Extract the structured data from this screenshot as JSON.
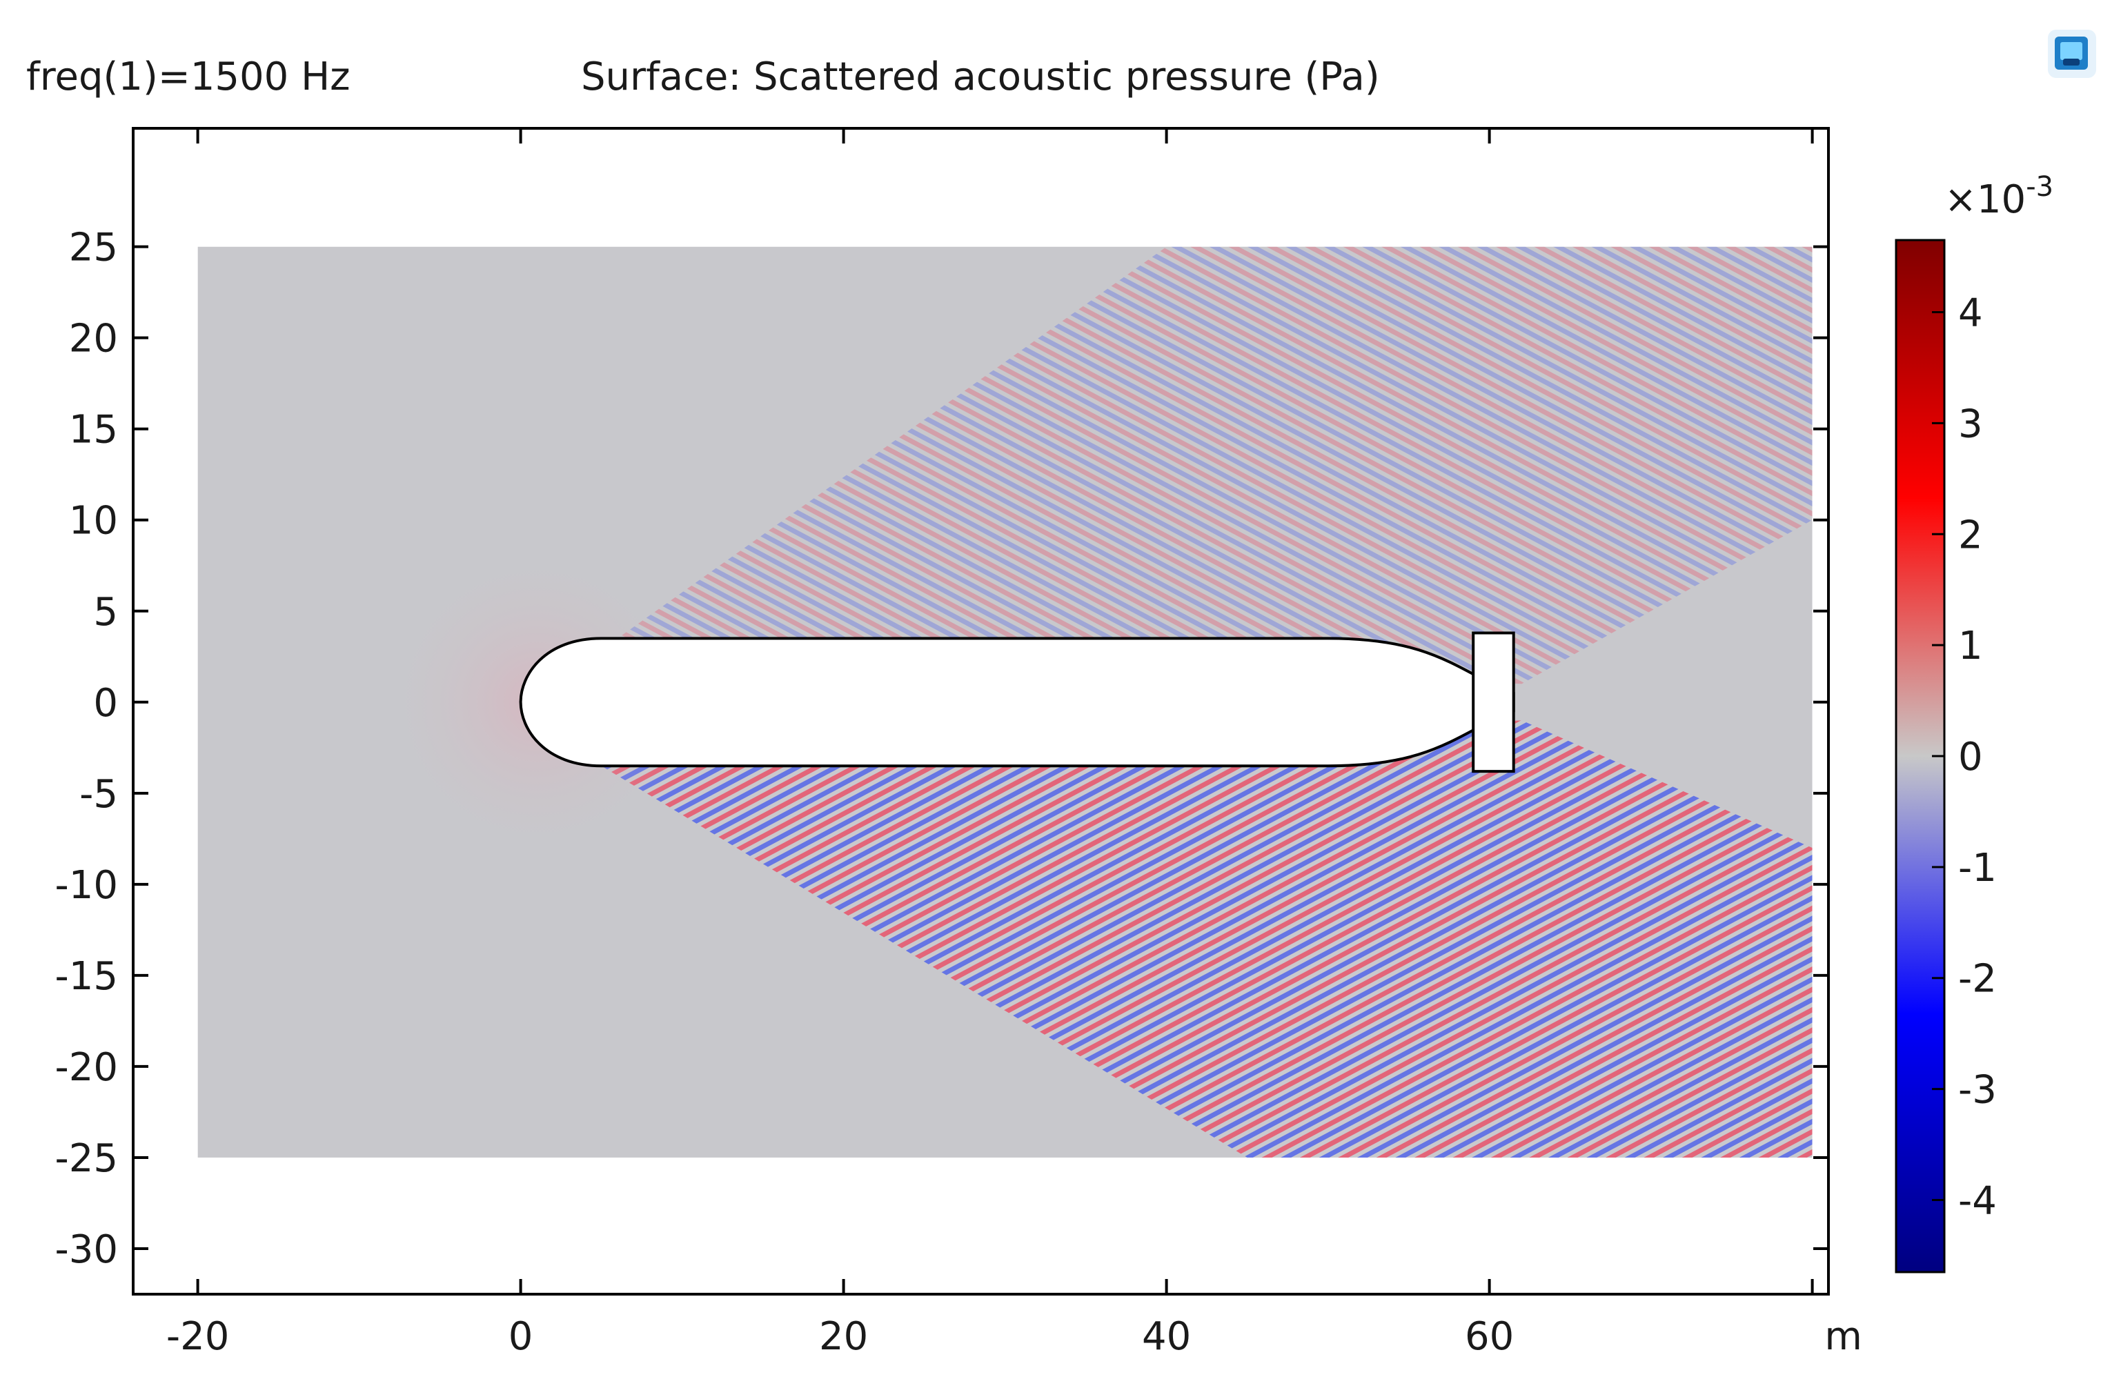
{
  "header": {
    "frequency_label": "freq(1)=1500 Hz",
    "plot_title": "Surface: Scattered acoustic pressure (Pa)"
  },
  "toolbar": {
    "icon": "comsol-logo-icon"
  },
  "chart_data": {
    "type": "heatmap",
    "title": "Surface: Scattered acoustic pressure (Pa)",
    "parameter_label": "freq(1)=1500 Hz",
    "xlabel": "",
    "ylabel": "",
    "x_unit": "m",
    "xlim": [
      -24,
      81
    ],
    "ylim": [
      -32.5,
      31.5
    ],
    "xticks": [
      -20,
      0,
      20,
      40,
      60,
      80
    ],
    "xtick_labels": [
      "-20",
      "0",
      "20",
      "40",
      "60",
      ""
    ],
    "yticks": [
      25,
      20,
      15,
      10,
      5,
      0,
      -5,
      -10,
      -15,
      -20,
      -25,
      -30
    ],
    "ytick_labels": [
      "25",
      "20",
      "15",
      "10",
      "5",
      "0",
      "-5",
      "-10",
      "-15",
      "-20",
      "-25",
      "-30"
    ],
    "domain": {
      "x": [
        -20,
        80
      ],
      "y": [
        -25,
        25
      ]
    },
    "grid": false,
    "colorbar": {
      "multiplier": "×10",
      "exponent": "-3",
      "range": [
        -4.65,
        4.65
      ],
      "ticks": [
        4,
        3,
        2,
        1,
        0,
        -1,
        -2,
        -3,
        -4
      ],
      "tick_labels": [
        "4",
        "3",
        "2",
        "1",
        "0",
        "-1",
        "-2",
        "-3",
        "-4"
      ],
      "colors": [
        "#000080",
        "#0000ff",
        "#c8c8c8",
        "#ff0000",
        "#800000"
      ]
    },
    "obstacle": {
      "description_shape": "submarine hull with tail fin",
      "hull_x": [
        0,
        61.5
      ],
      "hull_half_height": 3.5,
      "fin_x": [
        59,
        61.5
      ],
      "fin_y": [
        -3.8,
        3.8
      ]
    },
    "field_color_background": "#c8c8cc"
  }
}
